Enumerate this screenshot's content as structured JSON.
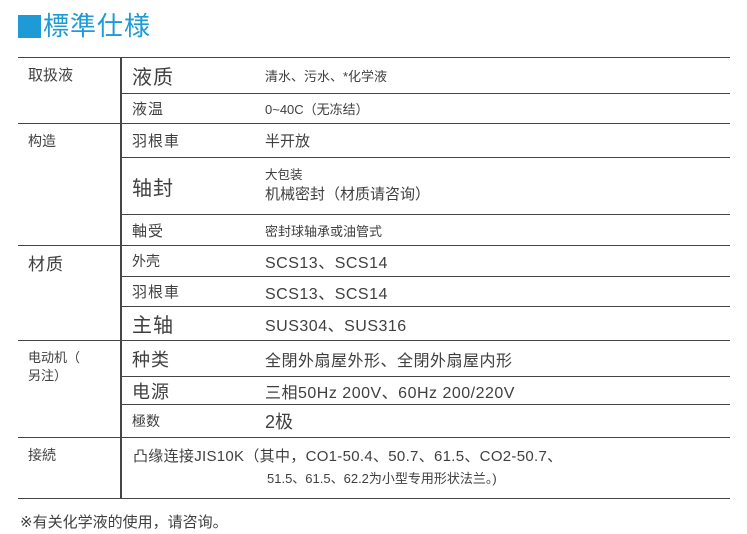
{
  "colors": {
    "accent": "#1e9bd7"
  },
  "title": {
    "text": "標準仕様"
  },
  "table": {
    "groups": [
      {
        "label": "取扱液",
        "rows": [
          {
            "label": "液质",
            "value": "清水、污水、*化学液"
          },
          {
            "label": "液温",
            "value": "0~40C（无冻结）"
          }
        ]
      },
      {
        "label": "构造",
        "rows": [
          {
            "label": "羽根車",
            "value": "半开放"
          },
          {
            "label": "轴封",
            "value_lines": [
              "大包装",
              "机械密封（材质请咨询）"
            ]
          },
          {
            "label": "軸受",
            "value": "密封球轴承或油管式"
          }
        ]
      },
      {
        "label": "材质",
        "rows": [
          {
            "label": "外壳",
            "value": "SCS13、SCS14"
          },
          {
            "label": "羽根車",
            "value": "SCS13、SCS14"
          },
          {
            "label": "主轴",
            "value": "SUS304、SUS316"
          }
        ]
      },
      {
        "label": "电动机（\n另注）",
        "rows": [
          {
            "label": "种类",
            "value": "全閉外扇屋外形、全閉外扇屋内形"
          },
          {
            "label": "电源",
            "value": "三相50Hz 200V、60Hz 200/220V"
          },
          {
            "label": "極数",
            "value": "2极"
          }
        ]
      },
      {
        "label": "接続",
        "rows": [
          {
            "value_lines": [
              "凸缘连接JIS10K（其中，CO1-50.4、50.7、61.5、CO2-50.7、",
              "51.5、61.5、62.2为小型专用形状法兰。)"
            ]
          }
        ]
      }
    ]
  },
  "footnote": "※有关化学液的使用，请咨询。"
}
